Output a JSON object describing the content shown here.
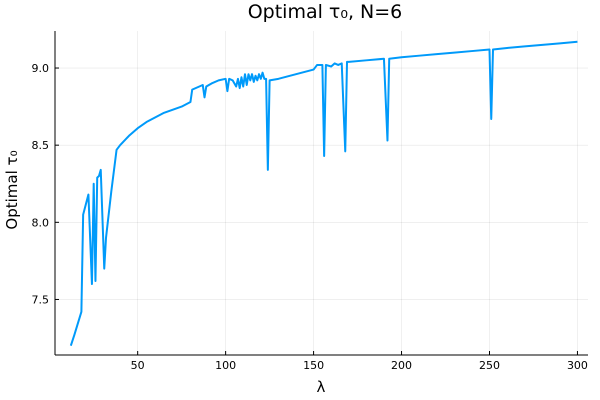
{
  "chart_data": {
    "type": "line",
    "title": "Optimal τ₀, N=6",
    "xlabel": "λ",
    "ylabel": "Optimal τ₀",
    "xlim": [
      3,
      306
    ],
    "ylim": [
      7.14,
      9.24
    ],
    "xticks": [
      50,
      100,
      150,
      200,
      250,
      300
    ],
    "yticks": [
      7.5,
      8.0,
      8.5,
      9.0
    ],
    "ytick_labels": [
      "7.5",
      "8.0",
      "8.5",
      "9.0"
    ],
    "grid": true,
    "legend": "none",
    "color": "#009AFA",
    "series": [
      {
        "x": [
          12,
          14,
          18,
          19,
          22,
          24,
          25,
          26,
          27,
          28,
          29,
          31,
          32,
          35,
          38,
          40,
          45,
          50,
          55,
          60,
          65,
          70,
          75,
          80,
          81,
          87,
          88,
          89,
          92,
          96,
          100,
          101,
          102,
          104,
          106,
          107,
          108,
          109,
          110,
          111,
          112,
          113,
          114,
          115,
          116,
          117,
          118,
          119,
          120,
          121,
          122,
          123,
          124,
          125,
          130,
          140,
          150,
          152,
          155,
          156,
          157,
          160,
          162,
          164,
          166,
          168,
          169,
          170,
          180,
          190,
          192,
          193,
          200,
          210,
          220,
          230,
          240,
          250,
          251,
          252,
          260,
          270,
          280,
          290,
          300
        ],
        "y": [
          7.2,
          7.27,
          7.42,
          8.05,
          8.18,
          7.6,
          8.25,
          7.62,
          8.29,
          8.3,
          8.34,
          7.7,
          7.9,
          8.2,
          8.47,
          8.5,
          8.56,
          8.61,
          8.65,
          8.68,
          8.71,
          8.73,
          8.75,
          8.78,
          8.86,
          8.89,
          8.81,
          8.88,
          8.9,
          8.92,
          8.93,
          8.85,
          8.93,
          8.92,
          8.88,
          8.93,
          8.87,
          8.94,
          8.88,
          8.96,
          8.89,
          8.96,
          8.92,
          8.96,
          8.91,
          8.95,
          8.92,
          8.96,
          8.93,
          8.97,
          8.93,
          8.93,
          8.34,
          8.92,
          8.93,
          8.96,
          8.99,
          9.02,
          9.02,
          8.43,
          9.02,
          9.01,
          9.03,
          9.02,
          9.03,
          8.46,
          9.04,
          9.04,
          9.05,
          9.06,
          8.53,
          9.06,
          9.07,
          9.08,
          9.09,
          9.1,
          9.11,
          9.12,
          8.67,
          9.12,
          9.13,
          9.14,
          9.15,
          9.16,
          9.17
        ]
      }
    ]
  }
}
